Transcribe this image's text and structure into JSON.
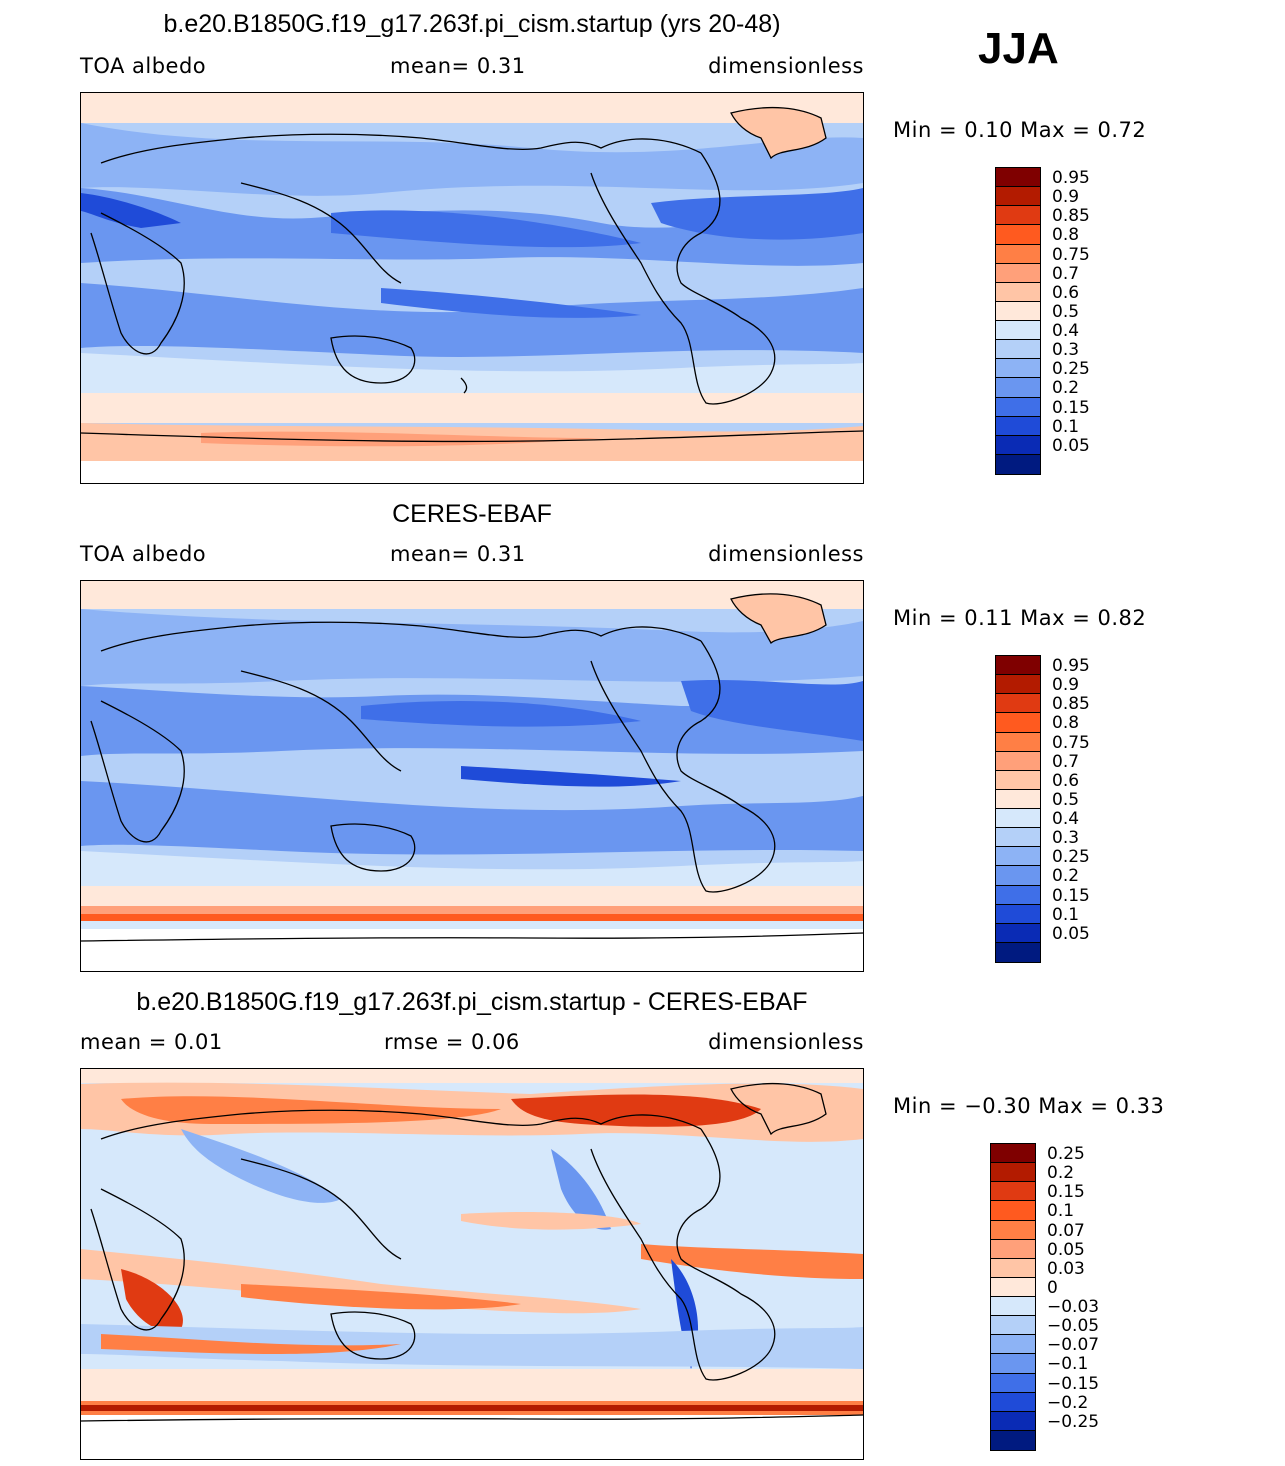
{
  "season": "JJA",
  "panels": [
    {
      "title": "b.e20.B1850G.f19_g17.263f.pi_cism.startup (yrs 20-48)",
      "left_text": "TOA albedo",
      "center_text": "mean=    0.31",
      "right_text": "dimensionless",
      "min_max": "Min =    0.10  Max =     0.72",
      "colorbar_labels": [
        "0.95",
        "0.9",
        "0.85",
        "0.8",
        "0.75",
        "0.7",
        "0.6",
        "0.5",
        "0.4",
        "0.3",
        "0.25",
        "0.2",
        "0.15",
        "0.1",
        "0.05"
      ]
    },
    {
      "title": "CERES-EBAF",
      "left_text": "TOA albedo",
      "center_text": "mean=    0.31",
      "right_text": "dimensionless",
      "min_max": "Min =    0.11  Max =     0.82",
      "colorbar_labels": [
        "0.95",
        "0.9",
        "0.85",
        "0.8",
        "0.75",
        "0.7",
        "0.6",
        "0.5",
        "0.4",
        "0.3",
        "0.25",
        "0.2",
        "0.15",
        "0.1",
        "0.05"
      ]
    },
    {
      "title": "b.e20.B1850G.f19_g17.263f.pi_cism.startup - CERES-EBAF",
      "left_text": "mean =    0.01",
      "center_text": "rmse =    0.06",
      "right_text": "dimensionless",
      "min_max": "Min =  −0.30  Max =     0.33",
      "colorbar_labels": [
        "0.25",
        "0.2",
        "0.15",
        "0.1",
        "0.07",
        "0.05",
        "0.03",
        "0",
        "−0.03",
        "−0.05",
        "−0.07",
        "−0.1",
        "−0.15",
        "−0.2",
        "−0.25"
      ]
    }
  ],
  "colorbar_colors": [
    "#7f0000",
    "#b31b00",
    "#e03a12",
    "#ff5a1f",
    "#ff7f45",
    "#ffa07a",
    "#ffc5a6",
    "#ffe8da",
    "#d6e8fb",
    "#b4d0f8",
    "#8db3f5",
    "#6a96f0",
    "#3f6fe8",
    "#1f4bd8",
    "#0a2bb5",
    "#001a80"
  ]
}
